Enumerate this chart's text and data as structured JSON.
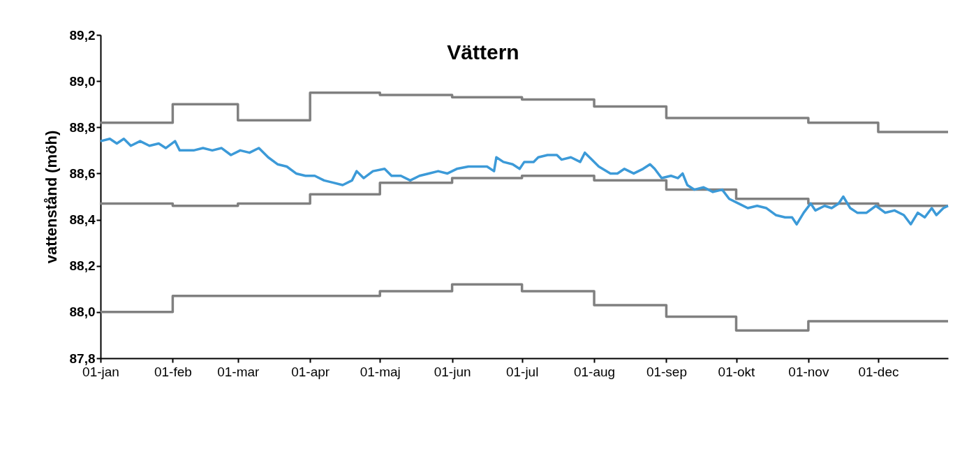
{
  "chart_data": {
    "type": "line",
    "title": "Vättern",
    "ylabel": "vattenstånd (möh)",
    "xlim": [
      "--01-01",
      "--12-31"
    ],
    "xticks": [
      {
        "value": "--01-01",
        "label": "01-jan"
      },
      {
        "value": "--02-01",
        "label": "01-feb"
      },
      {
        "value": "--03-01",
        "label": "01-mar"
      },
      {
        "value": "--04-01",
        "label": "01-apr"
      },
      {
        "value": "--05-01",
        "label": "01-maj"
      },
      {
        "value": "--06-01",
        "label": "01-jun"
      },
      {
        "value": "--07-01",
        "label": "01-jul"
      },
      {
        "value": "--08-01",
        "label": "01-aug"
      },
      {
        "value": "--09-01",
        "label": "01-sep"
      },
      {
        "value": "--10-01",
        "label": "01-okt"
      },
      {
        "value": "--11-01",
        "label": "01-nov"
      },
      {
        "value": "--12-01",
        "label": "01-dec"
      }
    ],
    "ylim": [
      87.8,
      89.2
    ],
    "yticks": [
      {
        "value": 87.8,
        "label": "87,8"
      },
      {
        "value": 88.0,
        "label": "88,0"
      },
      {
        "value": 88.2,
        "label": "88,2"
      },
      {
        "value": 88.4,
        "label": "88,4"
      },
      {
        "value": 88.6,
        "label": "88,6"
      },
      {
        "value": 88.8,
        "label": "88,8"
      },
      {
        "value": 89.0,
        "label": "89,0"
      },
      {
        "value": 89.2,
        "label": "89,2"
      }
    ],
    "grid": false,
    "legend": false,
    "line_style": "solid",
    "series": [
      {
        "type": "step",
        "color": "#808080",
        "x": [
          "--01-01",
          "--02-01",
          "--03-01",
          "--04-01",
          "--05-01",
          "--06-01",
          "--07-01",
          "--08-01",
          "--09-01",
          "--10-01",
          "--11-01",
          "--12-01",
          "--12-31"
        ],
        "values": [
          88.82,
          88.9,
          88.83,
          88.95,
          88.94,
          88.93,
          88.92,
          88.89,
          88.84,
          88.84,
          88.82,
          88.78,
          88.78
        ]
      },
      {
        "type": "step",
        "color": "#808080",
        "x": [
          "--01-01",
          "--02-01",
          "--03-01",
          "--04-01",
          "--05-01",
          "--06-01",
          "--07-01",
          "--08-01",
          "--09-01",
          "--10-01",
          "--11-01",
          "--12-01",
          "--12-31"
        ],
        "values": [
          88.47,
          88.46,
          88.47,
          88.51,
          88.56,
          88.58,
          88.59,
          88.57,
          88.53,
          88.49,
          88.47,
          88.46,
          88.46
        ]
      },
      {
        "type": "step",
        "color": "#808080",
        "x": [
          "--01-01",
          "--02-01",
          "--03-01",
          "--04-01",
          "--05-01",
          "--06-01",
          "--07-01",
          "--08-01",
          "--09-01",
          "--10-01",
          "--11-01",
          "--12-01",
          "--12-31"
        ],
        "values": [
          88.0,
          88.07,
          88.07,
          88.07,
          88.09,
          88.12,
          88.09,
          88.03,
          87.98,
          87.92,
          87.96,
          87.96,
          87.96
        ]
      },
      {
        "color": "#3c9ad8",
        "x": [
          "--01-01",
          "--01-05",
          "--01-08",
          "--01-11",
          "--01-14",
          "--01-18",
          "--01-22",
          "--01-26",
          "--01-29",
          "--02-02",
          "--02-04",
          "--02-10",
          "--02-14",
          "--02-18",
          "--02-22",
          "--02-26",
          "--03-02",
          "--03-06",
          "--03-10",
          "--03-14",
          "--03-18",
          "--03-22",
          "--03-26",
          "--03-30",
          "--04-03",
          "--04-07",
          "--04-11",
          "--04-15",
          "--04-19",
          "--04-21",
          "--04-24",
          "--04-28",
          "--05-03",
          "--05-06",
          "--05-10",
          "--05-14",
          "--05-18",
          "--05-22",
          "--05-26",
          "--05-30",
          "--06-03",
          "--06-08",
          "--06-12",
          "--06-16",
          "--06-19",
          "--06-20",
          "--06-23",
          "--06-27",
          "--06-30",
          "--07-02",
          "--07-06",
          "--07-08",
          "--07-12",
          "--07-16",
          "--07-18",
          "--07-22",
          "--07-26",
          "--07-28",
          "--07-31",
          "--08-03",
          "--08-08",
          "--08-11",
          "--08-14",
          "--08-18",
          "--08-22",
          "--08-25",
          "--08-27",
          "--08-30",
          "--09-03",
          "--09-06",
          "--09-08",
          "--09-10",
          "--09-13",
          "--09-17",
          "--09-21",
          "--09-25",
          "--09-28",
          "--10-02",
          "--10-06",
          "--10-10",
          "--10-14",
          "--10-18",
          "--10-22",
          "--10-25",
          "--10-27",
          "--10-30",
          "--11-02",
          "--11-04",
          "--11-08",
          "--11-11",
          "--11-14",
          "--11-16",
          "--11-19",
          "--11-22",
          "--11-26",
          "--11-30",
          "--12-04",
          "--12-08",
          "--12-12",
          "--12-15",
          "--12-18",
          "--12-21",
          "--12-24",
          "--12-26",
          "--12-29",
          "--12-31"
        ],
        "values": [
          88.74,
          88.75,
          88.73,
          88.75,
          88.72,
          88.74,
          88.72,
          88.73,
          88.71,
          88.74,
          88.7,
          88.7,
          88.71,
          88.7,
          88.71,
          88.68,
          88.7,
          88.69,
          88.71,
          88.67,
          88.64,
          88.63,
          88.6,
          88.59,
          88.59,
          88.57,
          88.56,
          88.55,
          88.57,
          88.61,
          88.58,
          88.61,
          88.62,
          88.59,
          88.59,
          88.57,
          88.59,
          88.6,
          88.61,
          88.6,
          88.62,
          88.63,
          88.63,
          88.63,
          88.61,
          88.67,
          88.65,
          88.64,
          88.62,
          88.65,
          88.65,
          88.67,
          88.68,
          88.68,
          88.66,
          88.67,
          88.65,
          88.69,
          88.66,
          88.63,
          88.6,
          88.6,
          88.62,
          88.6,
          88.62,
          88.64,
          88.62,
          88.58,
          88.59,
          88.58,
          88.6,
          88.55,
          88.53,
          88.54,
          88.52,
          88.53,
          88.49,
          88.47,
          88.45,
          88.46,
          88.45,
          88.42,
          88.41,
          88.41,
          88.38,
          88.43,
          88.47,
          88.44,
          88.46,
          88.45,
          88.47,
          88.5,
          88.45,
          88.43,
          88.43,
          88.46,
          88.43,
          88.44,
          88.42,
          88.38,
          88.43,
          88.41,
          88.45,
          88.42,
          88.45,
          88.46
        ]
      }
    ]
  }
}
